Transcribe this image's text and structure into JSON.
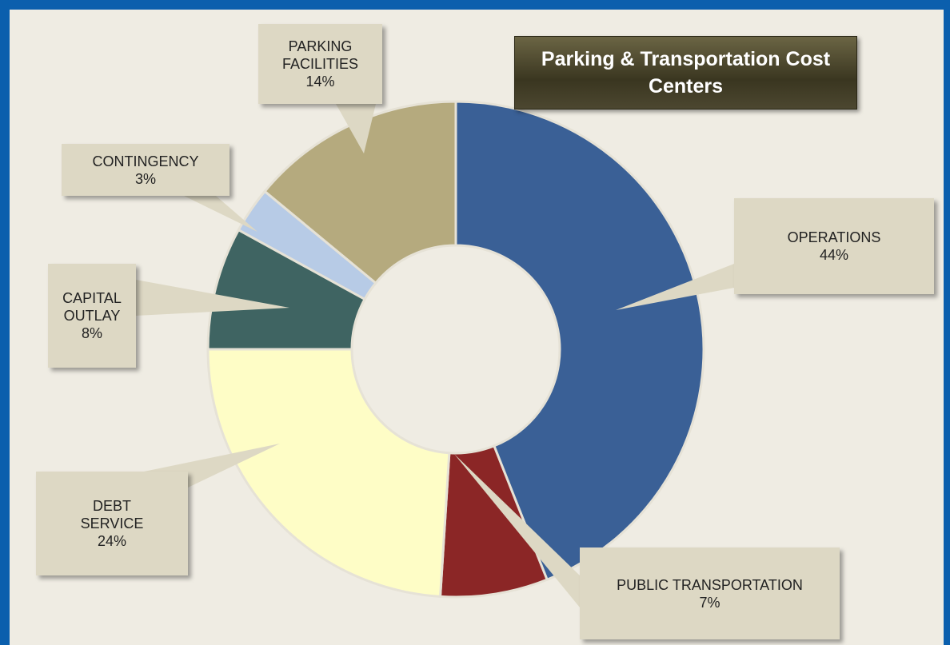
{
  "chart_data": {
    "type": "donut",
    "title": "Parking & Transportation Cost Centers",
    "categories": [
      "OPERATIONS",
      "PUBLIC TRANSPORTATION",
      "DEBT SERVICE",
      "CAPITAL OUTLAY",
      "CONTINGENCY",
      "PARKING FACILITIES"
    ],
    "values": [
      44,
      7,
      24,
      8,
      3,
      14
    ],
    "value_labels": [
      "44%",
      "7%",
      "24%",
      "8%",
      "3%",
      "14%"
    ],
    "colors": [
      "#3a6096",
      "#8b2626",
      "#fefdc6",
      "#3f6462",
      "#b7cbe6",
      "#b5aa7e"
    ]
  }
}
